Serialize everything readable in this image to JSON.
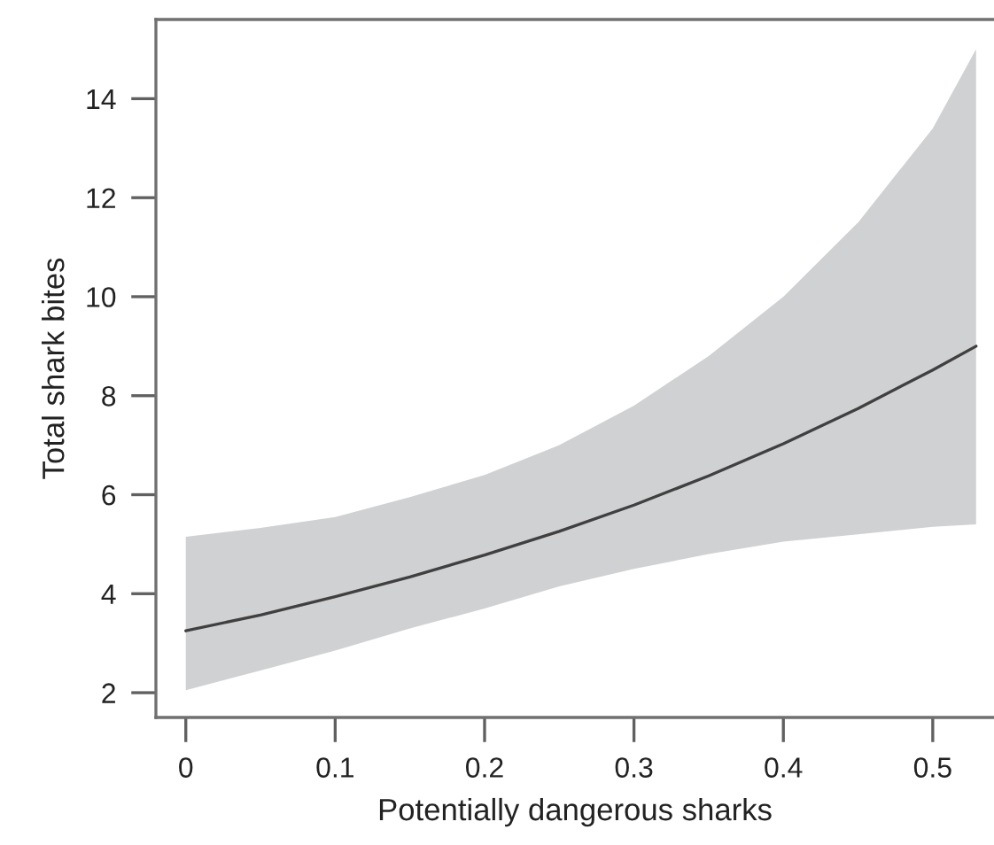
{
  "chart_data": {
    "type": "line",
    "xlabel": "Potentially dangerous sharks",
    "ylabel": "Total shark bites",
    "x": [
      0,
      0.05,
      0.1,
      0.15,
      0.2,
      0.25,
      0.3,
      0.35,
      0.4,
      0.45,
      0.5,
      0.529
    ],
    "series": [
      {
        "color": "#404040",
        "values": [
          3.25,
          3.57,
          3.94,
          4.34,
          4.78,
          5.26,
          5.79,
          6.38,
          7.03,
          7.74,
          8.52,
          9.0
        ],
        "lower": [
          2.05,
          2.45,
          2.85,
          3.3,
          3.7,
          4.15,
          4.5,
          4.8,
          5.05,
          5.2,
          5.35,
          5.4
        ],
        "upper": [
          5.15,
          5.33,
          5.55,
          5.95,
          6.4,
          7.0,
          7.8,
          8.8,
          10.0,
          11.5,
          13.4,
          15.0
        ]
      }
    ],
    "xlim": [
      -0.02,
      0.541
    ],
    "xticks": [
      0,
      {
        "value": 0.1,
        "label": "0.1"
      },
      {
        "value": 0.2,
        "label": "0.2"
      },
      {
        "value": 0.3,
        "label": "0.3"
      },
      {
        "value": 0.4,
        "label": "0.4"
      },
      {
        "value": 0.5,
        "label": "0.5"
      }
    ],
    "ylim": [
      1.5,
      15.6
    ],
    "yticks": [
      2,
      4,
      6,
      8,
      10,
      12,
      14
    ],
    "grid": false,
    "marker": "none",
    "line_style": "solid"
  }
}
